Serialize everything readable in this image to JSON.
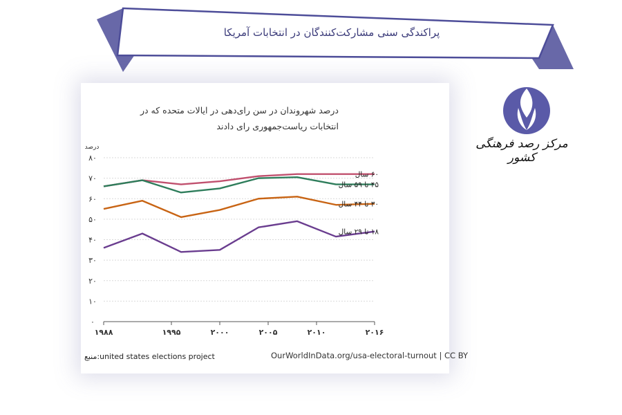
{
  "header": {
    "title": "پراکندگی سنی مشارکت‌کنندگان در انتخابات آمریکا"
  },
  "brand": {
    "logo_text": "مرکز رصد فرهنگی کشور",
    "logo_color": "#5a5aa8"
  },
  "chart_data": {
    "type": "line",
    "title_line1": "درصد شهروندان در سن رای‌دهی در ایالات متحده که در",
    "title_line2": "انتخابات ریاست‌جمهوری رای دادند",
    "ylabel": "درصد",
    "ylim": [
      0,
      80
    ],
    "y_ticks": [
      "۰",
      "۱۰",
      "۲۰",
      "۳۰",
      "۴۰",
      "۵۰",
      "۶۰",
      "۷۰",
      "۸۰"
    ],
    "x_ticks": [
      "۱۹۸۸",
      "۱۹۹۵",
      "۲۰۰۰",
      "۲۰۰۵",
      "۲۰۱۰",
      "۲۰۱۶"
    ],
    "x_tick_values": [
      1988,
      1995,
      2000,
      2005,
      2010,
      2016
    ],
    "x": [
      1988,
      1992,
      1996,
      2000,
      2004,
      2008,
      2012,
      2016
    ],
    "grid": true,
    "series": [
      {
        "name": "۶۰ سال",
        "color": "#c0506e",
        "values": [
          66,
          69,
          67,
          68.5,
          71,
          72,
          72,
          72
        ]
      },
      {
        "name": "۴۵ تا ۵۹ سال",
        "color": "#2e7d5b",
        "values": [
          66,
          69,
          63,
          65,
          70,
          70.5,
          67,
          67
        ]
      },
      {
        "name": "۳۰ تا ۴۴ سال",
        "color": "#c86414",
        "values": [
          55,
          59,
          51,
          54.5,
          60,
          61,
          57,
          57.5
        ]
      },
      {
        "name": "۱۸ تا ۲۹ سال",
        "color": "#6a3d8f",
        "values": [
          36,
          43,
          34,
          35,
          46,
          49,
          41.5,
          44
        ]
      }
    ]
  },
  "source": {
    "text": "منبع:united states elections project"
  },
  "footer": {
    "credit": "OurWorldInData.org/usa-electoral-turnout | CC BY"
  }
}
